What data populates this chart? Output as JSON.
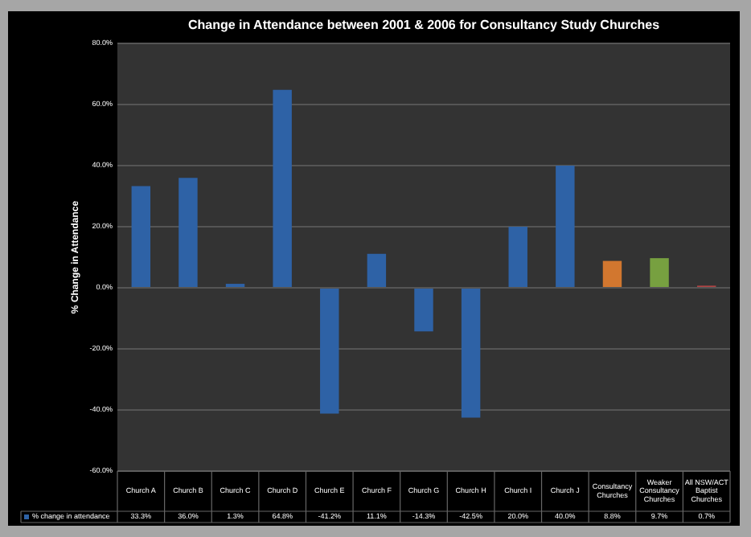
{
  "chart_data": {
    "type": "bar",
    "title": "Change in Attendance between 2001 & 2006 for Consultancy Study Churches",
    "ylabel": "% Change in Attendance",
    "categories": [
      "Church A",
      "Church B",
      "Church C",
      "Church D",
      "Church E",
      "Church F",
      "Church G",
      "Church H",
      "Church I",
      "Church J",
      "Consultancy Churches",
      "Weaker Consultancy Churches",
      "All NSW/ACT Baptist Churches"
    ],
    "series": [
      {
        "name": "% change in attendance",
        "color": "#2e62a6",
        "colors": [
          "#2e62a6",
          "#2e62a6",
          "#2e62a6",
          "#2e62a6",
          "#2e62a6",
          "#2e62a6",
          "#2e62a6",
          "#2e62a6",
          "#2e62a6",
          "#2e62a6",
          "#d2772f",
          "#77a040",
          "#b04444"
        ],
        "values": [
          33.3,
          36.0,
          1.3,
          64.8,
          -41.2,
          11.1,
          -14.3,
          -42.5,
          20.0,
          40.0,
          8.8,
          9.7,
          0.7
        ],
        "value_labels": [
          "33.3%",
          "36.0%",
          "1.3%",
          "64.8%",
          "-41.2%",
          "11.1%",
          "-14.3%",
          "-42.5%",
          "20.0%",
          "40.0%",
          "8.8%",
          "9.7%",
          "0.7%"
        ]
      }
    ],
    "ylim": [
      -60,
      80
    ],
    "yticks": [
      {
        "value": -60,
        "label": "-60.0%"
      },
      {
        "value": -40,
        "label": "-40.0%"
      },
      {
        "value": -20,
        "label": "-20.0%"
      },
      {
        "value": 0,
        "label": "0.0%"
      },
      {
        "value": 20,
        "label": "20.0%"
      },
      {
        "value": 40,
        "label": "40.0%"
      },
      {
        "value": 60,
        "label": "60.0%"
      },
      {
        "value": 80,
        "label": "80.0%"
      }
    ],
    "grid": "y",
    "legend": "bottom"
  }
}
